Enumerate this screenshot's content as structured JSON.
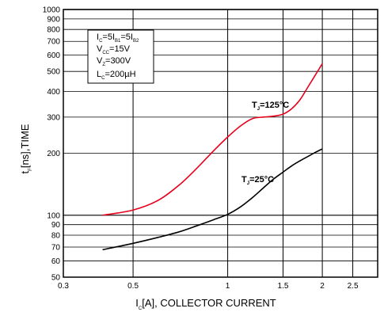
{
  "chart_data": {
    "type": "line",
    "title": "",
    "xlabel": {
      "main": "I",
      "sub": "C",
      "rest": "[A], COLLECTOR CURRENT"
    },
    "ylabel": {
      "main": "t",
      "sub": "F",
      "rest": "[ns],TIME"
    },
    "xscale": "log",
    "yscale": "log",
    "xlim": [
      0.3,
      3.0
    ],
    "ylim": [
      50,
      1000
    ],
    "x_ticks": [
      0.3,
      0.5,
      1,
      1.5,
      2,
      2.5
    ],
    "x_tick_labels": [
      "0.3",
      "0.5",
      "1",
      "1.5",
      "2",
      "2.5"
    ],
    "y_ticks": [
      50,
      60,
      70,
      80,
      90,
      100,
      200,
      300,
      400,
      500,
      600,
      700,
      800,
      900,
      1000
    ],
    "y_tick_labels": [
      "50",
      "60",
      "70",
      "80",
      "90",
      "100",
      "200",
      "300",
      "400",
      "500",
      "600",
      "700",
      "800",
      "900",
      "1000"
    ],
    "grid": true,
    "series": [
      {
        "name": "T_J=125°C",
        "color": "#e8001c",
        "x": [
          0.4,
          0.5,
          0.6,
          0.7,
          0.8,
          0.9,
          1.0,
          1.1,
          1.2,
          1.3,
          1.4,
          1.5,
          1.6,
          1.7,
          1.8,
          1.9,
          2.0
        ],
        "y": [
          100,
          106,
          118,
          140,
          170,
          205,
          240,
          272,
          295,
          300,
          303,
          310,
          330,
          365,
          420,
          480,
          545
        ]
      },
      {
        "name": "T_J=25°C",
        "color": "#000000",
        "x": [
          0.4,
          0.5,
          0.6,
          0.7,
          0.8,
          0.9,
          1.0,
          1.1,
          1.2,
          1.3,
          1.4,
          1.5,
          1.6,
          1.7,
          1.8,
          1.9,
          2.0
        ],
        "y": [
          68,
          73,
          78,
          83,
          89,
          95,
          101,
          110,
          122,
          136,
          150,
          162,
          174,
          184,
          193,
          202,
          210
        ]
      }
    ],
    "series_labels": [
      {
        "main": "T",
        "sub": "J",
        "rest": "=125°C"
      },
      {
        "main": "T",
        "sub": "J",
        "rest": "=25°C"
      }
    ],
    "conditions": [
      {
        "parts": [
          "I",
          "C",
          "=5I",
          "B1",
          "=5I",
          "B2"
        ]
      },
      {
        "parts": [
          "V",
          "CC",
          "=15V"
        ]
      },
      {
        "parts": [
          "V",
          "Z",
          "=300V"
        ]
      },
      {
        "parts": [
          "L",
          "C",
          "=200µH"
        ]
      }
    ]
  }
}
